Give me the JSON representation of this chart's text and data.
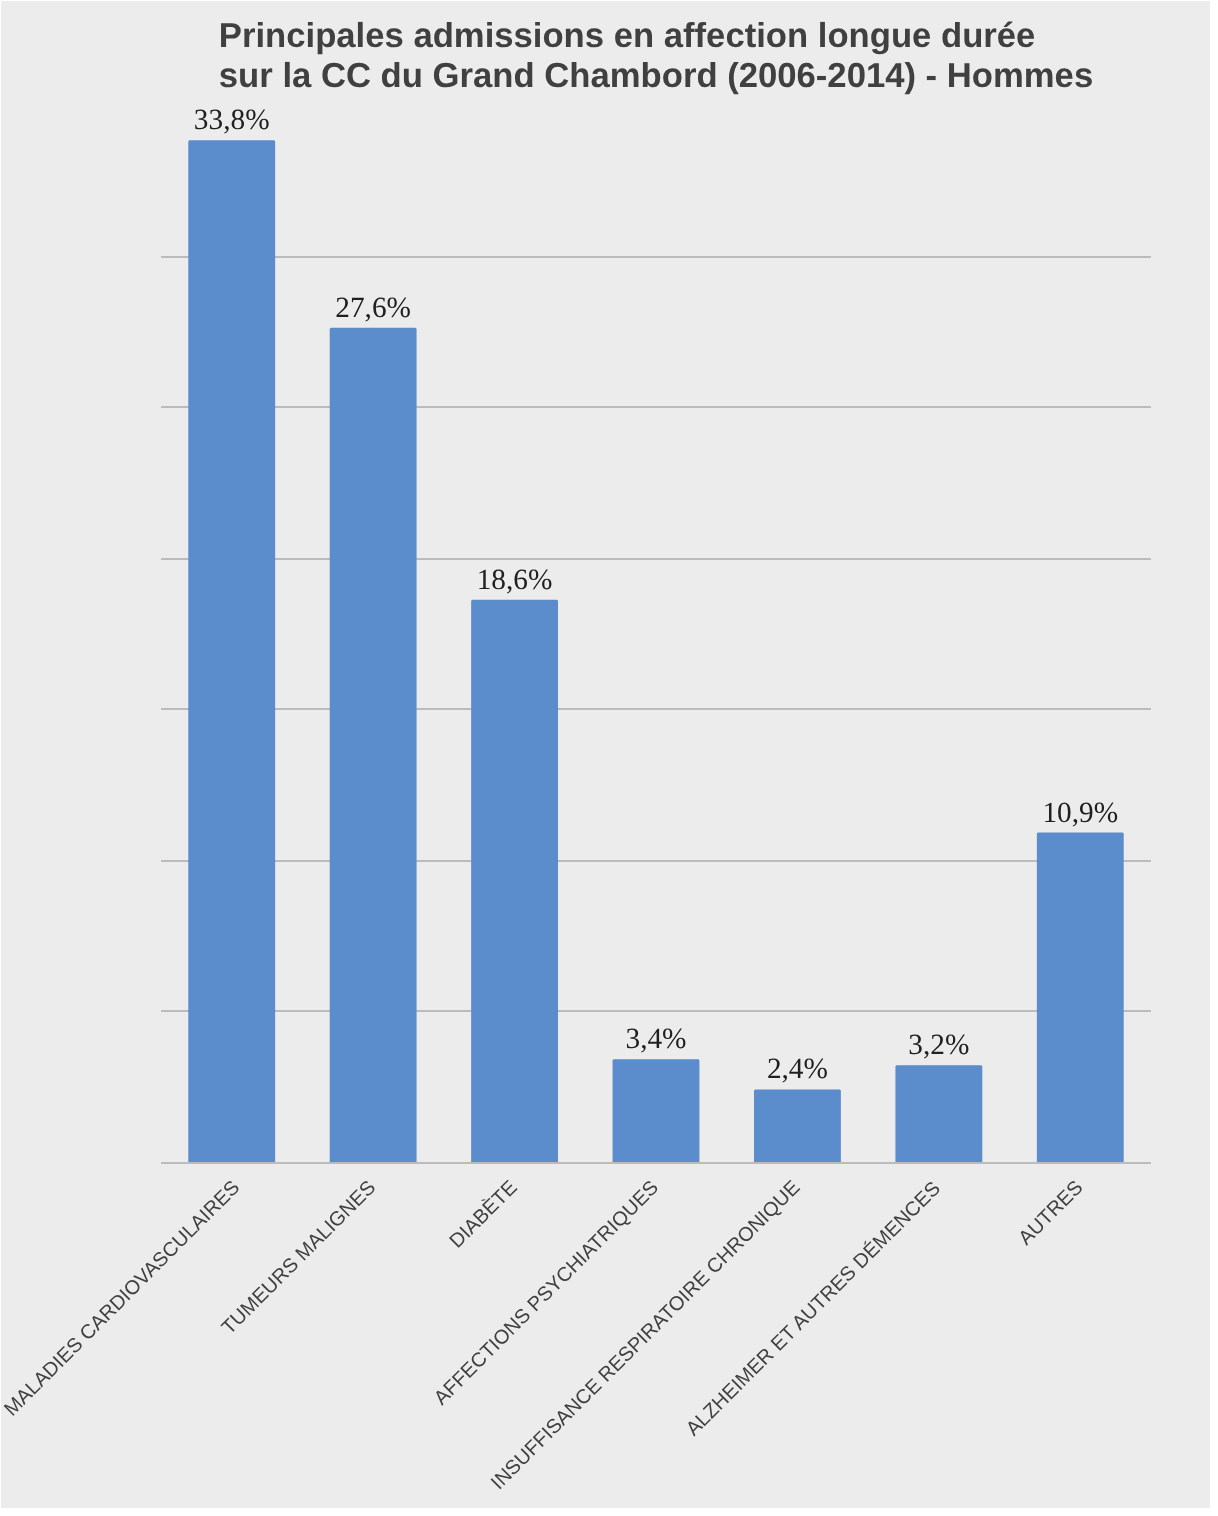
{
  "chart_data": {
    "type": "bar",
    "title": "Principales admissions en affection longue durée sur la CC du Grand Chambord (2006-2014) - Hommes",
    "categories": [
      "MALADIES CARDIOVASCULAIRES",
      "TUMEURS MALIGNES",
      "DIABÈTE",
      "AFFECTIONS PSYCHIATRIQUES",
      "INSUFFISANCE RESPIRATOIRE CHRONIQUE",
      "ALZHEIMER ET AUTRES DÉMENCES",
      "AUTRES"
    ],
    "values": [
      33.8,
      27.6,
      18.6,
      3.4,
      2.4,
      3.2,
      10.9
    ],
    "value_labels": [
      "33,8%",
      "27,6%",
      "18,6%",
      "3,4%",
      "2,4%",
      "3,2%",
      "10,9%"
    ],
    "color": "#5b8ccc",
    "ylim": [
      0,
      35
    ],
    "yticks": [
      {
        "value": 0,
        "label": null
      },
      {
        "value": 5,
        "label": null
      },
      {
        "value": 10,
        "label": null
      },
      {
        "value": 15,
        "label": null
      },
      {
        "value": 20,
        "label": null
      },
      {
        "value": 25,
        "label": null
      },
      {
        "value": 30,
        "label": null
      }
    ],
    "grid": "y",
    "tick_labels": "x"
  }
}
